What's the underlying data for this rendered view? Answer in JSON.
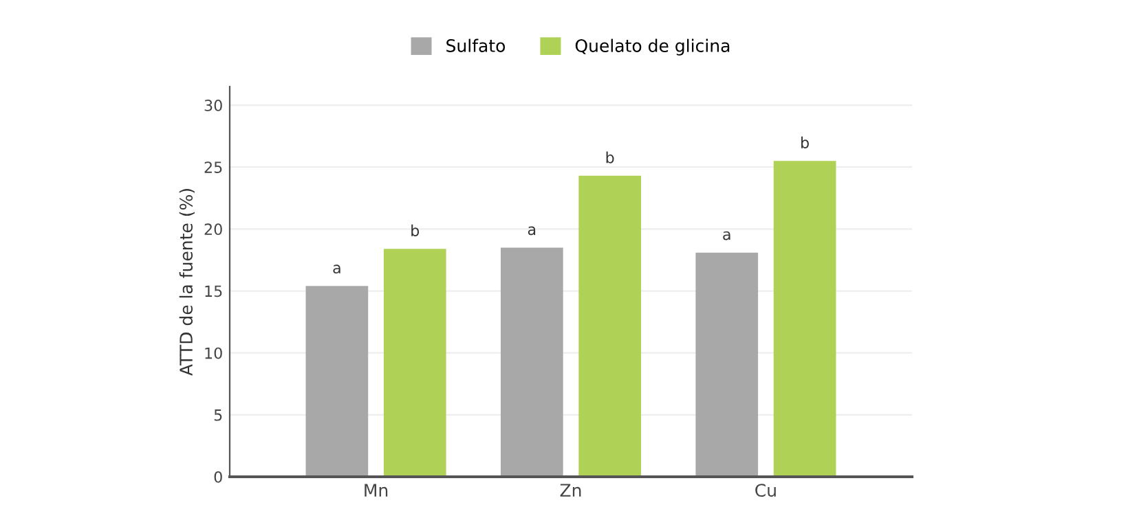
{
  "chart_data": {
    "type": "bar",
    "ylabel": "ATTD de la fuente (%)",
    "categories": [
      "Mn",
      "Zn",
      "Cu"
    ],
    "series": [
      {
        "name": "Sulfato",
        "color": "#a8a8a8",
        "values": [
          15.4,
          18.5,
          18.1
        ],
        "value_labels": [
          "a",
          "a",
          "a"
        ]
      },
      {
        "name": "Quelato de glicina",
        "color": "#afd156",
        "values": [
          18.4,
          24.3,
          25.5
        ],
        "value_labels": [
          "b",
          "b",
          "b"
        ]
      }
    ],
    "ylim": [
      0,
      31.5
    ],
    "yticks": [
      0,
      5,
      10,
      15,
      20,
      25,
      30
    ],
    "grid": "y",
    "legend": "top"
  }
}
